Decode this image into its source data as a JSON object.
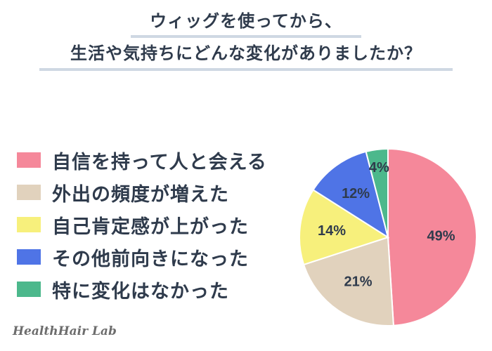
{
  "title": {
    "line1": "ウィッグを使ってから、",
    "line2": "生活や気持ちにどんな変化がありましたか？"
  },
  "colors": {
    "pink": "#f5889a",
    "beige": "#e1d2bd",
    "yellow": "#f7f07c",
    "blue": "#4f74e6",
    "green": "#4cb88c",
    "text": "#2f3b4c"
  },
  "chart_data": {
    "type": "pie",
    "title": "ウィッグを使ってから、生活や気持ちにどんな変化がありましたか？",
    "start": "12 o'clock",
    "direction": "clockwise",
    "slices": [
      {
        "label": "自信を持って人と会える",
        "value": 49,
        "display": "49%",
        "color": "#f5889a"
      },
      {
        "label": "外出の頻度が増えた",
        "value": 21,
        "display": "21%",
        "color": "#e1d2bd"
      },
      {
        "label": "自己肯定感が上がった",
        "value": 14,
        "display": "14%",
        "color": "#f7f07c"
      },
      {
        "label": "その他前向きになった",
        "value": 12,
        "display": "12%",
        "color": "#4f74e6"
      },
      {
        "label": "特に変化はなかった",
        "value": 4,
        "display": "4%",
        "color": "#4cb88c"
      }
    ],
    "legend_position": "left"
  },
  "brand": "HealthHair Lab"
}
